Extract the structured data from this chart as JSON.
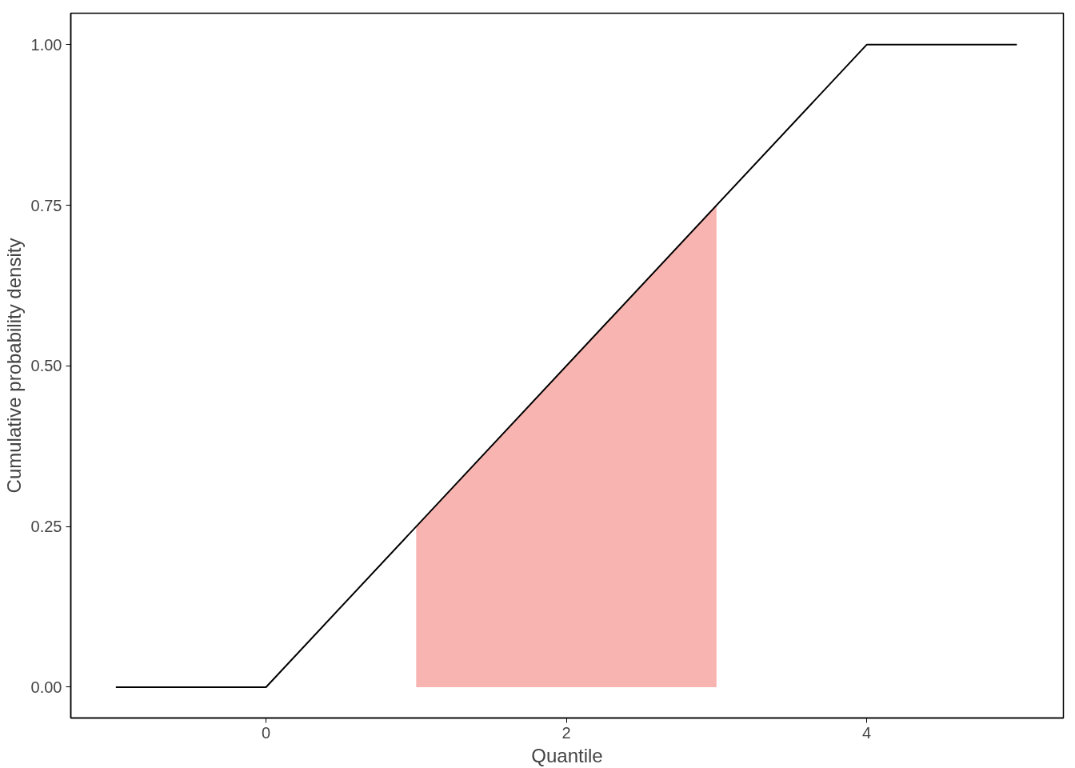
{
  "chart_data": {
    "type": "line",
    "xlabel": "Quantile",
    "ylabel": "Cumulative probability density",
    "series": [
      {
        "type": "area",
        "color": "#f8b4b0",
        "x": [
          1,
          3
        ],
        "values": [
          0.25,
          0.75
        ]
      },
      {
        "color": "#000000",
        "x": [
          -1,
          0,
          4,
          5
        ],
        "values": [
          0,
          0,
          1,
          1
        ]
      }
    ],
    "xlim": [
      -1.3,
      5.31
    ],
    "ylim": [
      -0.048,
      1.049
    ],
    "xticks": [
      0,
      2,
      4
    ],
    "yticks": [
      {
        "value": 0,
        "label": "0.00"
      },
      {
        "value": 0.25,
        "label": "0.25"
      },
      {
        "value": 0.5,
        "label": "0.50"
      },
      {
        "value": 0.75,
        "label": "0.75"
      },
      {
        "value": 1,
        "label": "1.00"
      }
    ],
    "grid": false,
    "marker": "none",
    "line_style": "solid"
  }
}
